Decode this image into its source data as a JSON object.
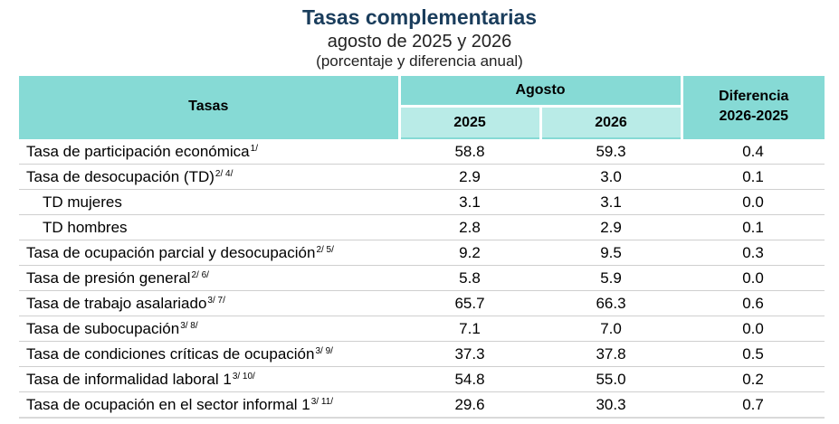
{
  "header": {
    "title": "Tasas complementarias",
    "subtitle": "agosto de 2025 y 2026",
    "unit": "(porcentaje y diferencia anual)"
  },
  "table": {
    "col_tasas": "Tasas",
    "col_group": "Agosto",
    "col_year1": "2025",
    "col_year2": "2026",
    "col_diff_line1": "Diferencia",
    "col_diff_line2": "2026-2025",
    "rows": [
      {
        "label": "Tasa de participación económica",
        "note": "1/",
        "v2025": "58.8",
        "v2026": "59.3",
        "diff": "0.4"
      },
      {
        "label": "Tasa de desocupación (TD)",
        "note": "2/ 4/",
        "v2025": "2.9",
        "v2026": "3.0",
        "diff": "0.1"
      },
      {
        "label": "TD mujeres",
        "note": "",
        "v2025": "3.1",
        "v2026": "3.1",
        "diff": "0.0"
      },
      {
        "label": "TD hombres",
        "note": "",
        "v2025": "2.8",
        "v2026": "2.9",
        "diff": "0.1"
      },
      {
        "label": "Tasa de ocupación parcial y desocupación",
        "note": "2/ 5/",
        "v2025": "9.2",
        "v2026": "9.5",
        "diff": "0.3"
      },
      {
        "label": "Tasa de presión general",
        "note": "2/ 6/",
        "v2025": "5.8",
        "v2026": "5.9",
        "diff": "0.0"
      },
      {
        "label": "Tasa de trabajo asalariado",
        "note": "3/ 7/",
        "v2025": "65.7",
        "v2026": "66.3",
        "diff": "0.6"
      },
      {
        "label": "Tasa de subocupación",
        "note": "3/ 8/",
        "v2025": "7.1",
        "v2026": "7.0",
        "diff": "0.0"
      },
      {
        "label": "Tasa de condiciones críticas de ocupación",
        "note": "3/ 9/",
        "v2025": "37.3",
        "v2026": "37.8",
        "diff": "0.5"
      },
      {
        "label": "Tasa de informalidad laboral 1",
        "note": "3/ 10/",
        "v2025": "54.8",
        "v2026": "55.0",
        "diff": "0.2"
      },
      {
        "label": "Tasa de ocupación en el sector informal 1",
        "note": "3/ 11/",
        "v2025": "29.6",
        "v2026": "30.3",
        "diff": "0.7"
      }
    ]
  }
}
